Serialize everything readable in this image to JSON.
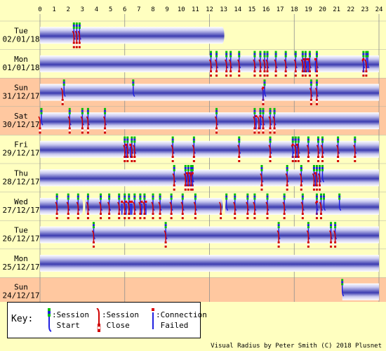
{
  "chart_data": {
    "type": "timeline",
    "x_ticks": [
      "0",
      "1",
      "2",
      "3",
      "4",
      "5",
      "6",
      "7",
      "8",
      "9",
      "10",
      "11",
      "12",
      "13",
      "14",
      "15",
      "16",
      "17",
      "18",
      "19",
      "20",
      "21",
      "22",
      "23",
      "24"
    ],
    "xlim": [
      0,
      24
    ],
    "rows": [
      {
        "day": "Tue",
        "date": "02/01/18",
        "bg": "#ffffc0",
        "sessions": [
          [
            0,
            12.9
          ]
        ],
        "starts": [
          2.4,
          2.6,
          2.8
        ],
        "closes": [
          2.4,
          2.6,
          2.8
        ],
        "fails": []
      },
      {
        "day": "Mon",
        "date": "01/01/18",
        "bg": "#ffffc0",
        "sessions": [
          [
            0,
            24
          ]
        ],
        "starts": [
          12.1,
          12.5,
          13.2,
          13.5,
          14.1,
          15.2,
          15.6,
          15.9,
          16.1,
          16.7,
          17.4,
          18.1,
          18.6,
          18.8,
          19.1,
          19.6,
          22.9,
          23.1,
          23.2
        ],
        "closes": [
          12.1,
          12.5,
          13.2,
          13.5,
          14.1,
          15.2,
          15.6,
          15.9,
          16.1,
          16.7,
          17.4,
          18.1,
          18.6,
          18.8,
          19.1,
          19.6,
          22.9,
          23.1
        ],
        "fails": [
          18.7,
          18.9,
          19.0,
          19.5,
          22.9
        ]
      },
      {
        "day": "Sun",
        "date": "31/12/17",
        "bg": "#ffc8a0",
        "sessions": [
          [
            0,
            24
          ]
        ],
        "starts": [
          1.7,
          6.6,
          15.9,
          19.2,
          19.6
        ],
        "closes": [
          1.6,
          15.8,
          19.2,
          19.6
        ],
        "fails": [
          15.8
        ]
      },
      {
        "day": "Sat",
        "date": "30/12/17",
        "bg": "#ffc8a0",
        "sessions": [
          [
            0,
            24
          ]
        ],
        "starts": [
          0.1,
          2.1,
          3.0,
          3.4,
          4.6,
          12.5,
          15.2,
          15.6,
          15.8,
          16.3,
          16.6
        ],
        "closes": [
          0.0,
          2.1,
          3.0,
          3.4,
          4.6,
          12.5,
          15.2,
          15.5,
          15.8,
          16.3,
          16.6
        ],
        "fails": [
          15.3,
          15.6
        ]
      },
      {
        "day": "Fri",
        "date": "29/12/17",
        "bg": "#ffffc0",
        "sessions": [
          [
            0,
            24
          ]
        ],
        "starts": [
          6.0,
          6.2,
          6.5,
          6.7,
          9.4,
          10.9,
          14.1,
          16.3,
          17.9,
          18.1,
          18.3,
          19.0,
          19.7,
          20.0,
          21.1,
          22.3
        ],
        "closes": [
          6.0,
          6.2,
          6.5,
          6.7,
          9.4,
          10.9,
          14.1,
          16.3,
          17.9,
          18.1,
          18.3,
          19.0,
          19.7,
          20.0,
          21.1,
          22.3
        ],
        "fails": [
          6.1,
          6.4,
          17.9,
          18.2
        ]
      },
      {
        "day": "Thu",
        "date": "28/12/17",
        "bg": "#ffffc0",
        "sessions": [
          [
            0,
            24
          ]
        ],
        "starts": [
          9.5,
          10.3,
          10.5,
          10.7,
          10.8,
          15.7,
          17.5,
          18.5,
          19.4,
          19.6,
          19.8,
          20.0
        ],
        "closes": [
          9.5,
          10.3,
          10.5,
          10.7,
          10.8,
          15.7,
          17.5,
          18.5,
          19.4,
          19.6,
          19.8
        ],
        "fails": [
          10.4,
          10.6,
          10.8,
          19.5
        ]
      },
      {
        "day": "Wed",
        "date": "27/12/17",
        "bg": "#ffffc0",
        "sessions": [
          [
            0,
            2.9
          ],
          [
            3.2,
            12.8
          ],
          [
            13.1,
            24
          ]
        ],
        "starts": [
          1.2,
          2.0,
          2.7,
          3.4,
          4.3,
          4.9,
          5.6,
          6.0,
          6.3,
          6.7,
          7.1,
          7.4,
          8.0,
          8.5,
          9.3,
          10.1,
          11.0,
          13.2,
          13.8,
          14.7,
          15.2,
          16.1,
          17.3,
          18.6,
          19.6,
          19.9,
          20.1,
          21.2
        ],
        "closes": [
          1.2,
          2.0,
          2.7,
          3.4,
          4.3,
          4.9,
          5.6,
          6.0,
          6.3,
          6.7,
          7.1,
          7.4,
          8.0,
          8.5,
          9.3,
          10.1,
          11.0,
          12.8,
          13.8,
          14.7,
          15.2,
          16.1,
          17.3,
          18.6,
          19.6,
          19.9
        ],
        "fails": [
          5.8,
          6.1,
          6.4,
          6.5,
          7.2,
          7.5,
          19.6
        ]
      },
      {
        "day": "Tue",
        "date": "26/12/17",
        "bg": "#ffffc0",
        "sessions": [
          [
            0,
            24
          ]
        ],
        "starts": [
          3.8,
          8.9,
          16.9,
          19.0,
          20.6,
          20.9
        ],
        "closes": [
          3.8,
          8.9,
          16.9,
          19.0,
          20.6,
          20.9
        ],
        "fails": []
      },
      {
        "day": "Mon",
        "date": "25/12/17",
        "bg": "#ffffc0",
        "sessions": [
          [
            0,
            24
          ]
        ],
        "starts": [],
        "closes": [],
        "fails": []
      },
      {
        "day": "Sun",
        "date": "24/12/17",
        "bg": "#ffc8a0",
        "sessions": [
          [
            21.4,
            24
          ]
        ],
        "starts": [
          21.4
        ],
        "closes": [],
        "fails": []
      }
    ]
  },
  "key": {
    "title": "Key:",
    "session_start": ":Session\n Start",
    "session_close": ":Session\n Close",
    "connection_failed": ":Connection\n Failed"
  },
  "footer": "Visual Radius by Peter Smith (C) 2018 Plusnet",
  "colors": {
    "page_bg": "#ffffc0",
    "weekend_bg": "#ffc8a0",
    "session_blue": "#3c3cb0",
    "start_green": "#00c000",
    "start_blue": "#2020e0",
    "close_red": "#d00000",
    "fail_red": "#e00000"
  }
}
